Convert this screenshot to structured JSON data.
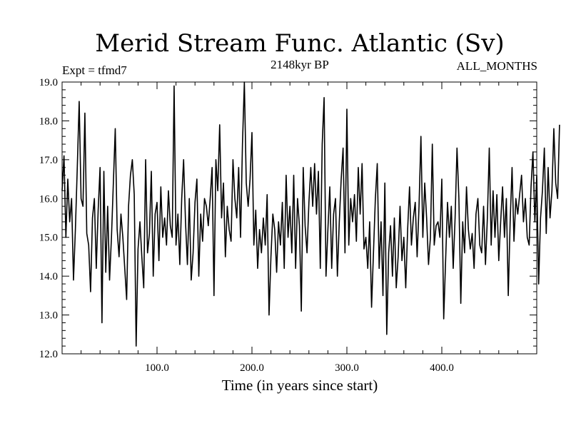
{
  "chart_data": {
    "type": "line",
    "title": "Merid Stream Func. Atlantic (Sv)",
    "subtitle_left": "Expt = tfmd7",
    "subtitle_center": "2148kyr BP",
    "subtitle_right": "ALL_MONTHS",
    "xlabel": "Time (in years since start)",
    "ylabel": "",
    "xlim": [
      0,
      500
    ],
    "ylim": [
      12.0,
      19.0
    ],
    "x_ticks": [
      100,
      200,
      300,
      400
    ],
    "x_tick_labels": [
      "100.0",
      "200.0",
      "300.0",
      "400.0"
    ],
    "y_ticks": [
      12,
      13,
      14,
      15,
      16,
      17,
      18,
      19
    ],
    "y_tick_labels": [
      "12.0",
      "13.0",
      "14.0",
      "15.0",
      "16.0",
      "17.0",
      "18.0",
      "19.0"
    ],
    "x_start": 0,
    "x_step": 2,
    "series": [
      {
        "name": "Merid Stream Func. Atlantic",
        "color": "#000000",
        "values": [
          16.2,
          17.1,
          15.0,
          16.5,
          15.4,
          16.0,
          13.9,
          15.2,
          16.8,
          18.5,
          16.0,
          15.8,
          18.2,
          15.1,
          14.8,
          13.6,
          15.5,
          16.0,
          14.2,
          15.7,
          16.8,
          12.8,
          16.7,
          14.1,
          15.8,
          13.9,
          15.0,
          16.4,
          17.8,
          15.2,
          14.5,
          15.6,
          15.0,
          14.2,
          13.4,
          15.8,
          16.6,
          17.0,
          16.1,
          12.2,
          14.7,
          15.4,
          14.5,
          13.7,
          17.0,
          14.6,
          15.1,
          16.7,
          14.0,
          15.6,
          15.9,
          14.4,
          16.3,
          15.0,
          15.5,
          14.8,
          16.2,
          15.3,
          15.0,
          18.9,
          14.8,
          15.6,
          14.3,
          16.0,
          17.0,
          15.4,
          14.3,
          16.0,
          13.9,
          14.6,
          15.9,
          16.5,
          14.0,
          15.6,
          14.9,
          16.0,
          15.8,
          15.3,
          16.0,
          16.8,
          13.5,
          17.0,
          16.2,
          17.9,
          15.5,
          16.4,
          14.5,
          15.8,
          15.2,
          14.9,
          17.0,
          16.0,
          15.5,
          16.8,
          15.0,
          17.4,
          19.0,
          16.4,
          15.8,
          16.5,
          17.7,
          14.8,
          15.7,
          14.2,
          15.2,
          14.6,
          15.5,
          14.8,
          16.1,
          13.0,
          14.5,
          15.6,
          15.2,
          14.1,
          15.4,
          14.8,
          15.9,
          14.2,
          16.6,
          15.0,
          15.8,
          14.6,
          16.6,
          14.2,
          16.0,
          15.3,
          13.1,
          16.8,
          15.3,
          14.6,
          15.9,
          16.8,
          15.8,
          16.9,
          15.6,
          16.7,
          14.2,
          17.4,
          18.6,
          14.0,
          15.2,
          16.3,
          14.2,
          15.6,
          16.0,
          14.0,
          15.4,
          16.5,
          17.3,
          14.6,
          18.3,
          14.8,
          16.0,
          15.4,
          16.1,
          14.9,
          16.8,
          15.6,
          16.9,
          14.7,
          15.0,
          14.2,
          15.4,
          13.2,
          14.6,
          16.0,
          16.9,
          14.2,
          15.4,
          13.5,
          16.4,
          12.5,
          14.6,
          15.3,
          14.0,
          15.5,
          13.7,
          14.5,
          15.8,
          14.4,
          15.0,
          13.7,
          15.2,
          16.3,
          14.8,
          15.5,
          15.9,
          14.5,
          15.8,
          17.6,
          15.0,
          16.4,
          15.5,
          14.3,
          15.0,
          17.4,
          14.8,
          15.3,
          15.4,
          15.0,
          16.5,
          12.9,
          14.4,
          15.9,
          15.0,
          15.8,
          14.2,
          15.5,
          17.3,
          16.0,
          13.3,
          15.4,
          14.6,
          16.3,
          15.2,
          14.7,
          15.1,
          14.2,
          15.6,
          16.0,
          14.8,
          14.6,
          15.8,
          14.3,
          15.5,
          17.3,
          14.8,
          16.2,
          15.0,
          16.1,
          14.4,
          15.4,
          16.3,
          15.0,
          16.0,
          13.5,
          15.4,
          16.8,
          14.9,
          16.0,
          15.6,
          16.1,
          16.6,
          15.4,
          16.0,
          15.0,
          14.8,
          16.3,
          17.2,
          15.4,
          16.6,
          13.8,
          15.5,
          16.2,
          17.3,
          15.1,
          16.8,
          15.5,
          16.2,
          17.8,
          16.4,
          16.0,
          17.9
        ]
      }
    ]
  }
}
